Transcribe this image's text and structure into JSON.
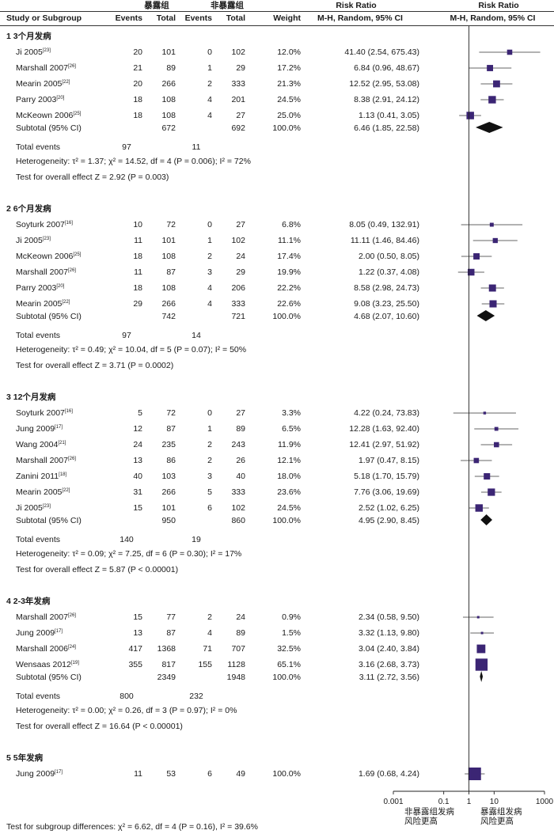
{
  "header": {
    "study_col": "Study or Subgroup",
    "exposed_group": "暴露组",
    "unexposed_group": "非暴露组",
    "events": "Events",
    "total": "Total",
    "weight": "Weight",
    "rr_title": "Risk Ratio",
    "rr_method": "M-H, Random, 95% CI"
  },
  "labels": {
    "total_events": "Total events",
    "heterogeneity_prefix": "Heterogeneity:",
    "overall_prefix": "Test for overall effect"
  },
  "axis": {
    "ticks": [
      "0.001",
      "0.1",
      "1",
      "10",
      "1000"
    ],
    "tick_values": [
      0.001,
      0.1,
      1,
      10,
      1000
    ],
    "left_label_line1": "非暴露组发病",
    "left_label_line2": "风险更高",
    "right_label_line1": "暴露组发病",
    "right_label_line2": "风险更高"
  },
  "footer": "Test for subgroup differences: χ² = 6.62, df = 4 (P = 0.16), I² = 39.6%",
  "chart_data": {
    "type": "forest",
    "title": "Risk Ratio",
    "xlabel": "M-H, Random, 95% CI",
    "x_scale": "log",
    "xlim": [
      0.001,
      1000
    ],
    "null_value": 1,
    "groups": [
      {
        "title": "1 3个月发病",
        "studies": [
          {
            "name": "Ji 2005",
            "ref": "[23]",
            "e1": "20",
            "n1": "101",
            "e2": "0",
            "n2": "102",
            "weight": "12.0%",
            "rr": 41.4,
            "lo": 2.54,
            "hi": 675.43,
            "ci": "41.40 (2.54, 675.43)"
          },
          {
            "name": "Marshall 2007",
            "ref": "[26]",
            "e1": "21",
            "n1": "89",
            "e2": "1",
            "n2": "29",
            "weight": "17.2%",
            "rr": 6.84,
            "lo": 0.96,
            "hi": 48.67,
            "ci": "6.84 (0.96, 48.67)"
          },
          {
            "name": "Mearin 2005",
            "ref": "[22]",
            "e1": "20",
            "n1": "266",
            "e2": "2",
            "n2": "333",
            "weight": "21.3%",
            "rr": 12.52,
            "lo": 2.95,
            "hi": 53.08,
            "ci": "12.52 (2.95, 53.08)"
          },
          {
            "name": "Parry 2003",
            "ref": "[20]",
            "e1": "18",
            "n1": "108",
            "e2": "4",
            "n2": "201",
            "weight": "24.5%",
            "rr": 8.38,
            "lo": 2.91,
            "hi": 24.12,
            "ci": "8.38 (2.91, 24.12)"
          },
          {
            "name": "McKeown 2006",
            "ref": "[25]",
            "e1": "18",
            "n1": "108",
            "e2": "4",
            "n2": "27",
            "weight": "25.0%",
            "rr": 1.13,
            "lo": 0.41,
            "hi": 3.05,
            "ci": "1.13 (0.41, 3.05)"
          }
        ],
        "subtotal": {
          "label": "Subtotal (95% CI)",
          "n1": "672",
          "n2": "692",
          "weight": "100.0%",
          "rr": 6.46,
          "lo": 1.85,
          "hi": 22.58,
          "ci": "6.46 (1.85, 22.58)"
        },
        "total_events": [
          "97",
          "11"
        ],
        "heterogeneity": "τ² = 1.37; χ² = 14.52, df = 4 (P = 0.006); I² = 72%",
        "overall": "Z = 2.92 (P = 0.003)"
      },
      {
        "title": "2 6个月发病",
        "studies": [
          {
            "name": "Soyturk 2007",
            "ref": "[16]",
            "e1": "10",
            "n1": "72",
            "e2": "0",
            "n2": "27",
            "weight": "6.8%",
            "rr": 8.05,
            "lo": 0.49,
            "hi": 132.91,
            "ci": "8.05 (0.49, 132.91)"
          },
          {
            "name": "Ji 2005",
            "ref": "[23]",
            "e1": "11",
            "n1": "101",
            "e2": "1",
            "n2": "102",
            "weight": "11.1%",
            "rr": 11.11,
            "lo": 1.46,
            "hi": 84.46,
            "ci": "11.11 (1.46, 84.46)"
          },
          {
            "name": "McKeown 2006",
            "ref": "[25]",
            "e1": "18",
            "n1": "108",
            "e2": "2",
            "n2": "24",
            "weight": "17.4%",
            "rr": 2.0,
            "lo": 0.5,
            "hi": 8.05,
            "ci": "2.00 (0.50, 8.05)"
          },
          {
            "name": "Marshall 2007",
            "ref": "[26]",
            "e1": "11",
            "n1": "87",
            "e2": "3",
            "n2": "29",
            "weight": "19.9%",
            "rr": 1.22,
            "lo": 0.37,
            "hi": 4.08,
            "ci": "1.22 (0.37, 4.08)"
          },
          {
            "name": "Parry 2003",
            "ref": "[20]",
            "e1": "18",
            "n1": "108",
            "e2": "4",
            "n2": "206",
            "weight": "22.2%",
            "rr": 8.58,
            "lo": 2.98,
            "hi": 24.73,
            "ci": "8.58 (2.98, 24.73)"
          },
          {
            "name": "Mearin 2005",
            "ref": "[22]",
            "e1": "29",
            "n1": "266",
            "e2": "4",
            "n2": "333",
            "weight": "22.6%",
            "rr": 9.08,
            "lo": 3.23,
            "hi": 25.5,
            "ci": "9.08 (3.23, 25.50)"
          }
        ],
        "subtotal": {
          "label": "Subtotal (95% CI)",
          "n1": "742",
          "n2": "721",
          "weight": "100.0%",
          "rr": 4.68,
          "lo": 2.07,
          "hi": 10.6,
          "ci": "4.68 (2.07, 10.60)"
        },
        "total_events": [
          "97",
          "14"
        ],
        "heterogeneity": "τ² = 0.49; χ² = 10.04, df = 5 (P = 0.07); I² = 50%",
        "overall": "Z = 3.71 (P = 0.0002)"
      },
      {
        "title": "3 12个月发病",
        "studies": [
          {
            "name": "Soyturk 2007",
            "ref": "[16]",
            "e1": "5",
            "n1": "72",
            "e2": "0",
            "n2": "27",
            "weight": "3.3%",
            "rr": 4.22,
            "lo": 0.24,
            "hi": 73.83,
            "ci": "4.22 (0.24, 73.83)"
          },
          {
            "name": "Jung 2009",
            "ref": "[17]",
            "e1": "12",
            "n1": "87",
            "e2": "1",
            "n2": "89",
            "weight": "6.5%",
            "rr": 12.28,
            "lo": 1.63,
            "hi": 92.4,
            "ci": "12.28 (1.63, 92.40)"
          },
          {
            "name": "Wang 2004",
            "ref": "[21]",
            "e1": "24",
            "n1": "235",
            "e2": "2",
            "n2": "243",
            "weight": "11.9%",
            "rr": 12.41,
            "lo": 2.97,
            "hi": 51.92,
            "ci": "12.41 (2.97, 51.92)"
          },
          {
            "name": "Marshall 2007",
            "ref": "[26]",
            "e1": "13",
            "n1": "86",
            "e2": "2",
            "n2": "26",
            "weight": "12.1%",
            "rr": 1.97,
            "lo": 0.47,
            "hi": 8.15,
            "ci": "1.97 (0.47, 8.15)"
          },
          {
            "name": "Zanini 2011",
            "ref": "[18]",
            "e1": "40",
            "n1": "103",
            "e2": "3",
            "n2": "40",
            "weight": "18.0%",
            "rr": 5.18,
            "lo": 1.7,
            "hi": 15.79,
            "ci": "5.18 (1.70, 15.79)"
          },
          {
            "name": "Mearin 2005",
            "ref": "[22]",
            "e1": "31",
            "n1": "266",
            "e2": "5",
            "n2": "333",
            "weight": "23.6%",
            "rr": 7.76,
            "lo": 3.06,
            "hi": 19.69,
            "ci": "7.76 (3.06, 19.69)"
          },
          {
            "name": "Ji 2005",
            "ref": "[23]",
            "e1": "15",
            "n1": "101",
            "e2": "6",
            "n2": "102",
            "weight": "24.5%",
            "rr": 2.52,
            "lo": 1.02,
            "hi": 6.25,
            "ci": "2.52 (1.02, 6.25)"
          }
        ],
        "subtotal": {
          "label": "Subtotal (95% CI)",
          "n1": "950",
          "n2": "860",
          "weight": "100.0%",
          "rr": 4.95,
          "lo": 2.9,
          "hi": 8.45,
          "ci": "4.95 (2.90, 8.45)"
        },
        "total_events": [
          "140",
          "19"
        ],
        "heterogeneity": "τ² = 0.09; χ² = 7.25, df = 6 (P = 0.30); I² = 17%",
        "overall": "Z = 5.87 (P < 0.00001)"
      },
      {
        "title": "4 2-3年发病",
        "studies": [
          {
            "name": "Marshall 2007",
            "ref": "[26]",
            "e1": "15",
            "n1": "77",
            "e2": "2",
            "n2": "24",
            "weight": "0.9%",
            "rr": 2.34,
            "lo": 0.58,
            "hi": 9.5,
            "ci": "2.34 (0.58, 9.50)"
          },
          {
            "name": "Jung 2009",
            "ref": "[17]",
            "e1": "13",
            "n1": "87",
            "e2": "4",
            "n2": "89",
            "weight": "1.5%",
            "rr": 3.32,
            "lo": 1.13,
            "hi": 9.8,
            "ci": "3.32 (1.13, 9.80)"
          },
          {
            "name": "Marshall 2006",
            "ref": "[24]",
            "e1": "417",
            "n1": "1368",
            "e2": "71",
            "n2": "707",
            "weight": "32.5%",
            "rr": 3.04,
            "lo": 2.4,
            "hi": 3.84,
            "ci": "3.04 (2.40, 3.84)"
          },
          {
            "name": "Wensaas 2012",
            "ref": "[19]",
            "e1": "355",
            "n1": "817",
            "e2": "155",
            "n2": "1128",
            "weight": "65.1%",
            "rr": 3.16,
            "lo": 2.68,
            "hi": 3.73,
            "ci": "3.16 (2.68, 3.73)"
          }
        ],
        "subtotal": {
          "label": "Subtotal (95% CI)",
          "n1": "2349",
          "n2": "1948",
          "weight": "100.0%",
          "rr": 3.11,
          "lo": 2.72,
          "hi": 3.56,
          "ci": "3.11 (2.72, 3.56)"
        },
        "total_events": [
          "800",
          "232"
        ],
        "heterogeneity": "τ² = 0.00; χ² = 0.26, df = 3 (P = 0.97); I² = 0%",
        "overall": "Z = 16.64 (P < 0.00001)"
      },
      {
        "title": "5 5年发病",
        "studies": [
          {
            "name": "Jung 2009",
            "ref": "[17]",
            "e1": "11",
            "n1": "53",
            "e2": "6",
            "n2": "49",
            "weight": "100.0%",
            "rr": 1.69,
            "lo": 0.68,
            "hi": 4.24,
            "ci": "1.69 (0.68, 4.24)"
          }
        ]
      }
    ]
  },
  "colors": {
    "marker": "#3b2574",
    "diamond": "#111111",
    "line": "#333333"
  }
}
